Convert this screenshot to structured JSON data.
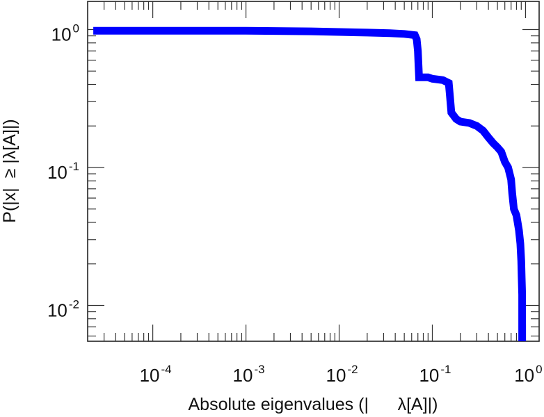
{
  "chart_data": {
    "type": "line",
    "title": "",
    "xlabel": "Absolute eigenvalues (|      λ[A]|)",
    "ylabel": "P(|x|  ≥ |λ[A]|)",
    "x_scale": "log",
    "y_scale": "log",
    "xlim": [
      2e-05,
      1.4
    ],
    "ylim": [
      0.0055,
      1.6
    ],
    "x_ticks": [
      {
        "value": 0.0001,
        "base": "10",
        "exp": "-4"
      },
      {
        "value": 0.001,
        "base": "10",
        "exp": "-3"
      },
      {
        "value": 0.01,
        "base": "10",
        "exp": "-2"
      },
      {
        "value": 0.1,
        "base": "10",
        "exp": "-1"
      },
      {
        "value": 1,
        "base": "10",
        "exp": "0"
      }
    ],
    "y_ticks": [
      {
        "value": 1,
        "base": "10",
        "exp": "0"
      },
      {
        "value": 0.1,
        "base": "10",
        "exp": "-1"
      },
      {
        "value": 0.01,
        "base": "10",
        "exp": "-2"
      }
    ],
    "grid": false,
    "series": [
      {
        "color": "#0000ff",
        "points": [
          [
            2.3e-05,
            0.98
          ],
          [
            0.0001,
            0.98
          ],
          [
            0.001,
            0.98
          ],
          [
            0.005,
            0.97
          ],
          [
            0.01,
            0.96
          ],
          [
            0.02,
            0.95
          ],
          [
            0.035,
            0.94
          ],
          [
            0.05,
            0.93
          ],
          [
            0.065,
            0.91
          ],
          [
            0.068,
            0.85
          ],
          [
            0.07,
            0.7
          ],
          [
            0.071,
            0.55
          ],
          [
            0.072,
            0.45
          ],
          [
            0.09,
            0.45
          ],
          [
            0.1,
            0.44
          ],
          [
            0.13,
            0.43
          ],
          [
            0.15,
            0.41
          ],
          [
            0.155,
            0.32
          ],
          [
            0.16,
            0.25
          ],
          [
            0.18,
            0.225
          ],
          [
            0.2,
            0.215
          ],
          [
            0.25,
            0.21
          ],
          [
            0.3,
            0.2
          ],
          [
            0.35,
            0.185
          ],
          [
            0.4,
            0.165
          ],
          [
            0.45,
            0.15
          ],
          [
            0.5,
            0.14
          ],
          [
            0.55,
            0.13
          ],
          [
            0.6,
            0.11
          ],
          [
            0.65,
            0.1
          ],
          [
            0.7,
            0.082
          ],
          [
            0.72,
            0.065
          ],
          [
            0.75,
            0.05
          ],
          [
            0.8,
            0.045
          ],
          [
            0.85,
            0.035
          ],
          [
            0.88,
            0.028
          ],
          [
            0.9,
            0.021
          ],
          [
            0.91,
            0.016
          ],
          [
            0.92,
            0.012
          ],
          [
            0.92,
            0.0055
          ]
        ]
      }
    ]
  }
}
